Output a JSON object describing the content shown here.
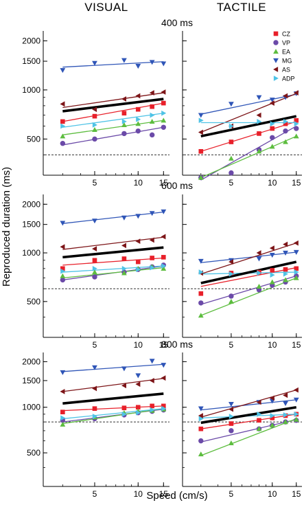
{
  "figure": {
    "columns": [
      "VISUAL",
      "TACTILE"
    ],
    "conditions": [
      "400 ms",
      "600 ms",
      "800 ms"
    ],
    "ylabel": "Reproduced duration (ms)",
    "xlabel": "Speed (cm/s)"
  },
  "chart_data": {
    "type": "scatter",
    "xscale": "log",
    "yscale": "log",
    "xlim": [
      2.2,
      16.5
    ],
    "ylim": [
      300,
      2300
    ],
    "xticks": [
      5,
      10,
      15
    ],
    "yticks": [
      500,
      1000,
      1500,
      2000
    ],
    "grid": false,
    "legend_position": "top-right of the 400 ms TACTILE panel",
    "x": [
      3,
      5,
      8,
      10,
      12.5,
      15
    ],
    "subjects": [
      {
        "name": "CZ",
        "color": "#e8202a",
        "marker": "square"
      },
      {
        "name": "VP",
        "color": "#6b4aa8",
        "marker": "circle"
      },
      {
        "name": "EA",
        "color": "#5dbd3f",
        "marker": "triangle-up"
      },
      {
        "name": "MG",
        "color": "#2f55b7",
        "marker": "triangle-down"
      },
      {
        "name": "AS",
        "color": "#7d1518",
        "marker": "triangle-left"
      },
      {
        "name": "ADP",
        "color": "#4fc3e6",
        "marker": "triangle-right"
      }
    ],
    "panels": [
      {
        "modality": "VISUAL",
        "condition": "400 ms",
        "target": 400,
        "mean_line": [
          740,
          880
        ],
        "series": {
          "CZ": [
            640,
            690,
            720,
            760,
            790,
            830
          ],
          "VP": [
            470,
            500,
            540,
            560,
            530,
            590
          ],
          "EA": [
            520,
            570,
            610,
            620,
            640,
            650
          ],
          "MG": [
            1320,
            1460,
            1520,
            1400,
            1480,
            1450
          ],
          "AS": [
            820,
            760,
            880,
            920,
            960,
            970
          ],
          "ADP": [
            600,
            610,
            640,
            660,
            700,
            720
          ]
        },
        "fit_ends": {
          "CZ": [
            640,
            830
          ],
          "VP": [
            460,
            590
          ],
          "EA": [
            530,
            650
          ],
          "MG": [
            1380,
            1490
          ],
          "AS": [
            780,
            960
          ],
          "ADP": [
            590,
            720
          ]
        }
      },
      {
        "modality": "TACTILE",
        "condition": "400 ms",
        "target": 400,
        "mean_line": [
          520,
          690
        ],
        "series": {
          "CZ": [
            420,
            480,
            540,
            580,
            620,
            650
          ],
          "VP": [
            290,
            310,
            430,
            510,
            560,
            580
          ],
          "EA": [
            290,
            380,
            420,
            450,
            480,
            520
          ],
          "MG": [
            700,
            820,
            900,
            870,
            900,
            950
          ],
          "AS": [
            550,
            600,
            700,
            830,
            920,
            960
          ],
          "ADP": [
            650,
            600,
            640,
            620,
            640,
            620
          ]
        },
        "fit_ends": {
          "CZ": [
            420,
            640
          ],
          "VP": [
            280,
            600
          ],
          "EA": [
            290,
            520
          ],
          "MG": [
            710,
            940
          ],
          "AS": [
            550,
            950
          ],
          "ADP": [
            630,
            630
          ]
        }
      },
      {
        "modality": "VISUAL",
        "condition": "600 ms",
        "target": 600,
        "mean_line": [
          940,
          1080
        ],
        "series": {
          "CZ": [
            800,
            900,
            920,
            880,
            930,
            940
          ],
          "VP": [
            680,
            710,
            760,
            790,
            820,
            840
          ],
          "EA": [
            720,
            760,
            750,
            800,
            820,
            800
          ],
          "MG": [
            1530,
            1580,
            1650,
            1690,
            1760,
            1800
          ],
          "AS": [
            1090,
            1060,
            1110,
            1180,
            1200,
            1260
          ],
          "ADP": [
            770,
            800,
            800,
            790,
            810,
            830
          ]
        },
        "fit_ends": {
          "CZ": [
            840,
            930
          ],
          "VP": [
            680,
            830
          ],
          "EA": [
            700,
            810
          ],
          "MG": [
            1520,
            1790
          ],
          "AS": [
            1050,
            1250
          ],
          "ADP": [
            760,
            830
          ]
        }
      },
      {
        "modality": "TACTILE",
        "condition": "600 ms",
        "target": 600,
        "mean_line": [
          650,
          880
        ],
        "series": {
          "CZ": [
            560,
            750,
            760,
            780,
            790,
            800
          ],
          "VP": [
            490,
            540,
            590,
            630,
            660,
            720
          ],
          "EA": [
            410,
            500,
            620,
            660,
            680,
            700
          ],
          "MG": [
            890,
            900,
            920,
            970,
            1000,
            1010
          ],
          "AS": [
            750,
            880,
            1000,
            1070,
            1130,
            1150
          ],
          "ADP": [
            760,
            740,
            750,
            730,
            740,
            760
          ]
        },
        "fit_ends": {
          "CZ": [
            620,
            810
          ],
          "VP": [
            480,
            720
          ],
          "EA": [
            410,
            700
          ],
          "MG": [
            870,
            1010
          ],
          "AS": [
            740,
            1150
          ],
          "ADP": [
            740,
            760
          ]
        }
      },
      {
        "modality": "VISUAL",
        "condition": "800 ms",
        "target": 800,
        "mean_line": [
          1060,
          1230
        ],
        "series": {
          "CZ": [
            930,
            980,
            990,
            1000,
            1020,
            1020
          ],
          "VP": [
            820,
            840,
            890,
            920,
            940,
            960
          ],
          "EA": [
            770,
            860,
            920,
            940,
            950,
            970
          ],
          "MG": [
            1700,
            1830,
            1800,
            1620,
            2020,
            1900
          ],
          "AS": [
            1270,
            1330,
            1390,
            1420,
            1500,
            1560
          ],
          "ADP": [
            850,
            870,
            900,
            920,
            960,
            980
          ]
        },
        "fit_ends": {
          "CZ": [
            950,
            1020
          ],
          "VP": [
            800,
            970
          ],
          "EA": [
            780,
            980
          ],
          "MG": [
            1720,
            1920
          ],
          "AS": [
            1270,
            1550
          ],
          "ADP": [
            840,
            980
          ]
        }
      },
      {
        "modality": "TACTILE",
        "condition": "800 ms",
        "target": 800,
        "mean_line": [
          790,
          1000
        ],
        "series": {
          "CZ": [
            720,
            780,
            820,
            850,
            880,
            900
          ],
          "VP": [
            600,
            700,
            720,
            760,
            800,
            820
          ],
          "EA": [
            490,
            580,
            720,
            760,
            800,
            830
          ],
          "MG": [
            980,
            1050,
            1080,
            1100,
            1060,
            1120
          ],
          "AS": [
            880,
            970,
            1080,
            1150,
            1200,
            1300
          ],
          "ADP": [
            840,
            870,
            900,
            880,
            890,
            900
          ]
        },
        "fit_ends": {
          "CZ": [
            720,
            900
          ],
          "VP": [
            590,
            830
          ],
          "EA": [
            480,
            840
          ],
          "MG": [
            960,
            1120
          ],
          "AS": [
            860,
            1300
          ],
          "ADP": [
            850,
            900
          ]
        }
      }
    ]
  }
}
